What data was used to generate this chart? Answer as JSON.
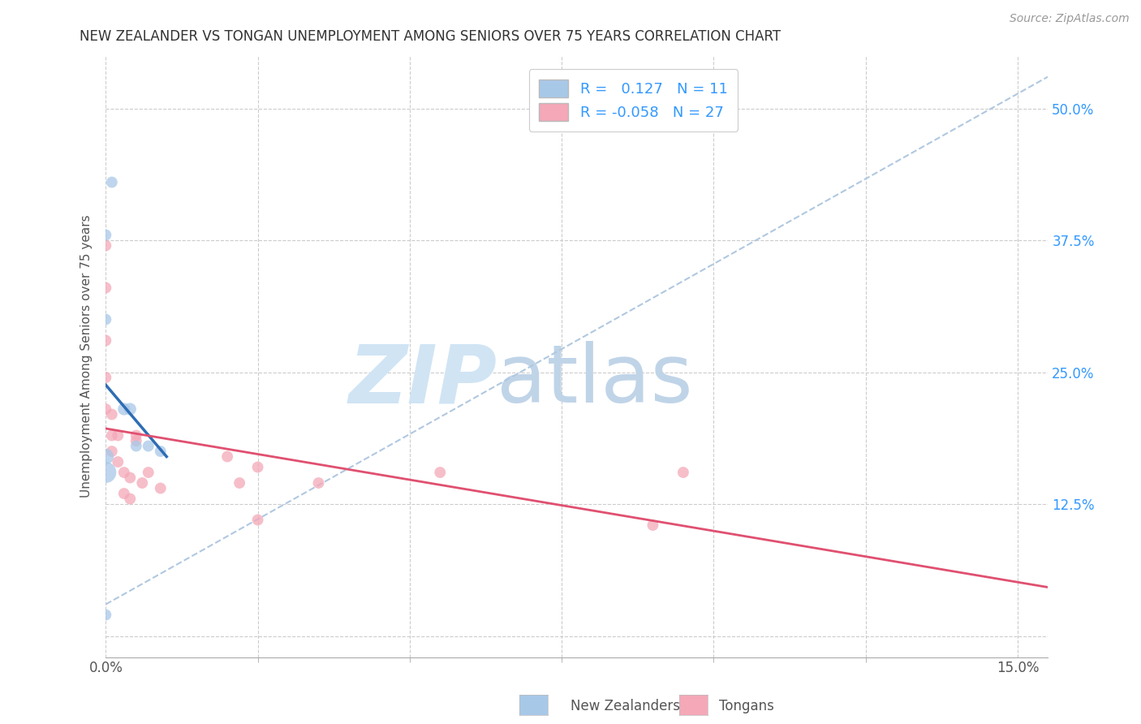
{
  "title": "NEW ZEALANDER VS TONGAN UNEMPLOYMENT AMONG SENIORS OVER 75 YEARS CORRELATION CHART",
  "source": "Source: ZipAtlas.com",
  "xlabel_label": "New Zealanders",
  "tongan_label": "Tongans",
  "ylabel_label": "Unemployment Among Seniors over 75 years",
  "xlim": [
    0.0,
    0.155
  ],
  "ylim": [
    -0.02,
    0.55
  ],
  "nz_R": 0.127,
  "nz_N": 11,
  "tongan_R": -0.058,
  "tongan_N": 27,
  "nz_color": "#a8c8e8",
  "tongan_color": "#f4a8b8",
  "nz_line_color": "#2e6db4",
  "tongan_line_color": "#e05070",
  "diag_line_color": "#b0c8e0",
  "watermark_zip_color": "#d0e4f4",
  "watermark_atlas_color": "#c0d4e8",
  "nz_scatter_x": [
    0.001,
    0.0,
    0.0,
    0.003,
    0.004,
    0.005,
    0.007,
    0.009,
    0.0,
    0.0,
    0.0
  ],
  "nz_scatter_y": [
    0.43,
    0.38,
    0.3,
    0.215,
    0.215,
    0.18,
    0.18,
    0.175,
    0.17,
    0.155,
    0.02
  ],
  "nz_bubble_sizes": [
    100,
    100,
    100,
    120,
    120,
    100,
    100,
    100,
    200,
    350,
    100
  ],
  "tongan_scatter_x": [
    0.0,
    0.0,
    0.0,
    0.0,
    0.0,
    0.001,
    0.001,
    0.001,
    0.002,
    0.002,
    0.003,
    0.003,
    0.004,
    0.004,
    0.005,
    0.005,
    0.006,
    0.007,
    0.009,
    0.02,
    0.022,
    0.025,
    0.025,
    0.035,
    0.055,
    0.09,
    0.095
  ],
  "tongan_scatter_y": [
    0.37,
    0.33,
    0.28,
    0.245,
    0.215,
    0.21,
    0.19,
    0.175,
    0.19,
    0.165,
    0.155,
    0.135,
    0.15,
    0.13,
    0.19,
    0.185,
    0.145,
    0.155,
    0.14,
    0.17,
    0.145,
    0.16,
    0.11,
    0.145,
    0.155,
    0.105,
    0.155
  ],
  "tongan_bubble_sizes": [
    100,
    100,
    100,
    100,
    100,
    100,
    100,
    100,
    100,
    100,
    100,
    100,
    100,
    100,
    100,
    100,
    100,
    100,
    100,
    100,
    100,
    100,
    100,
    100,
    100,
    100,
    100
  ]
}
